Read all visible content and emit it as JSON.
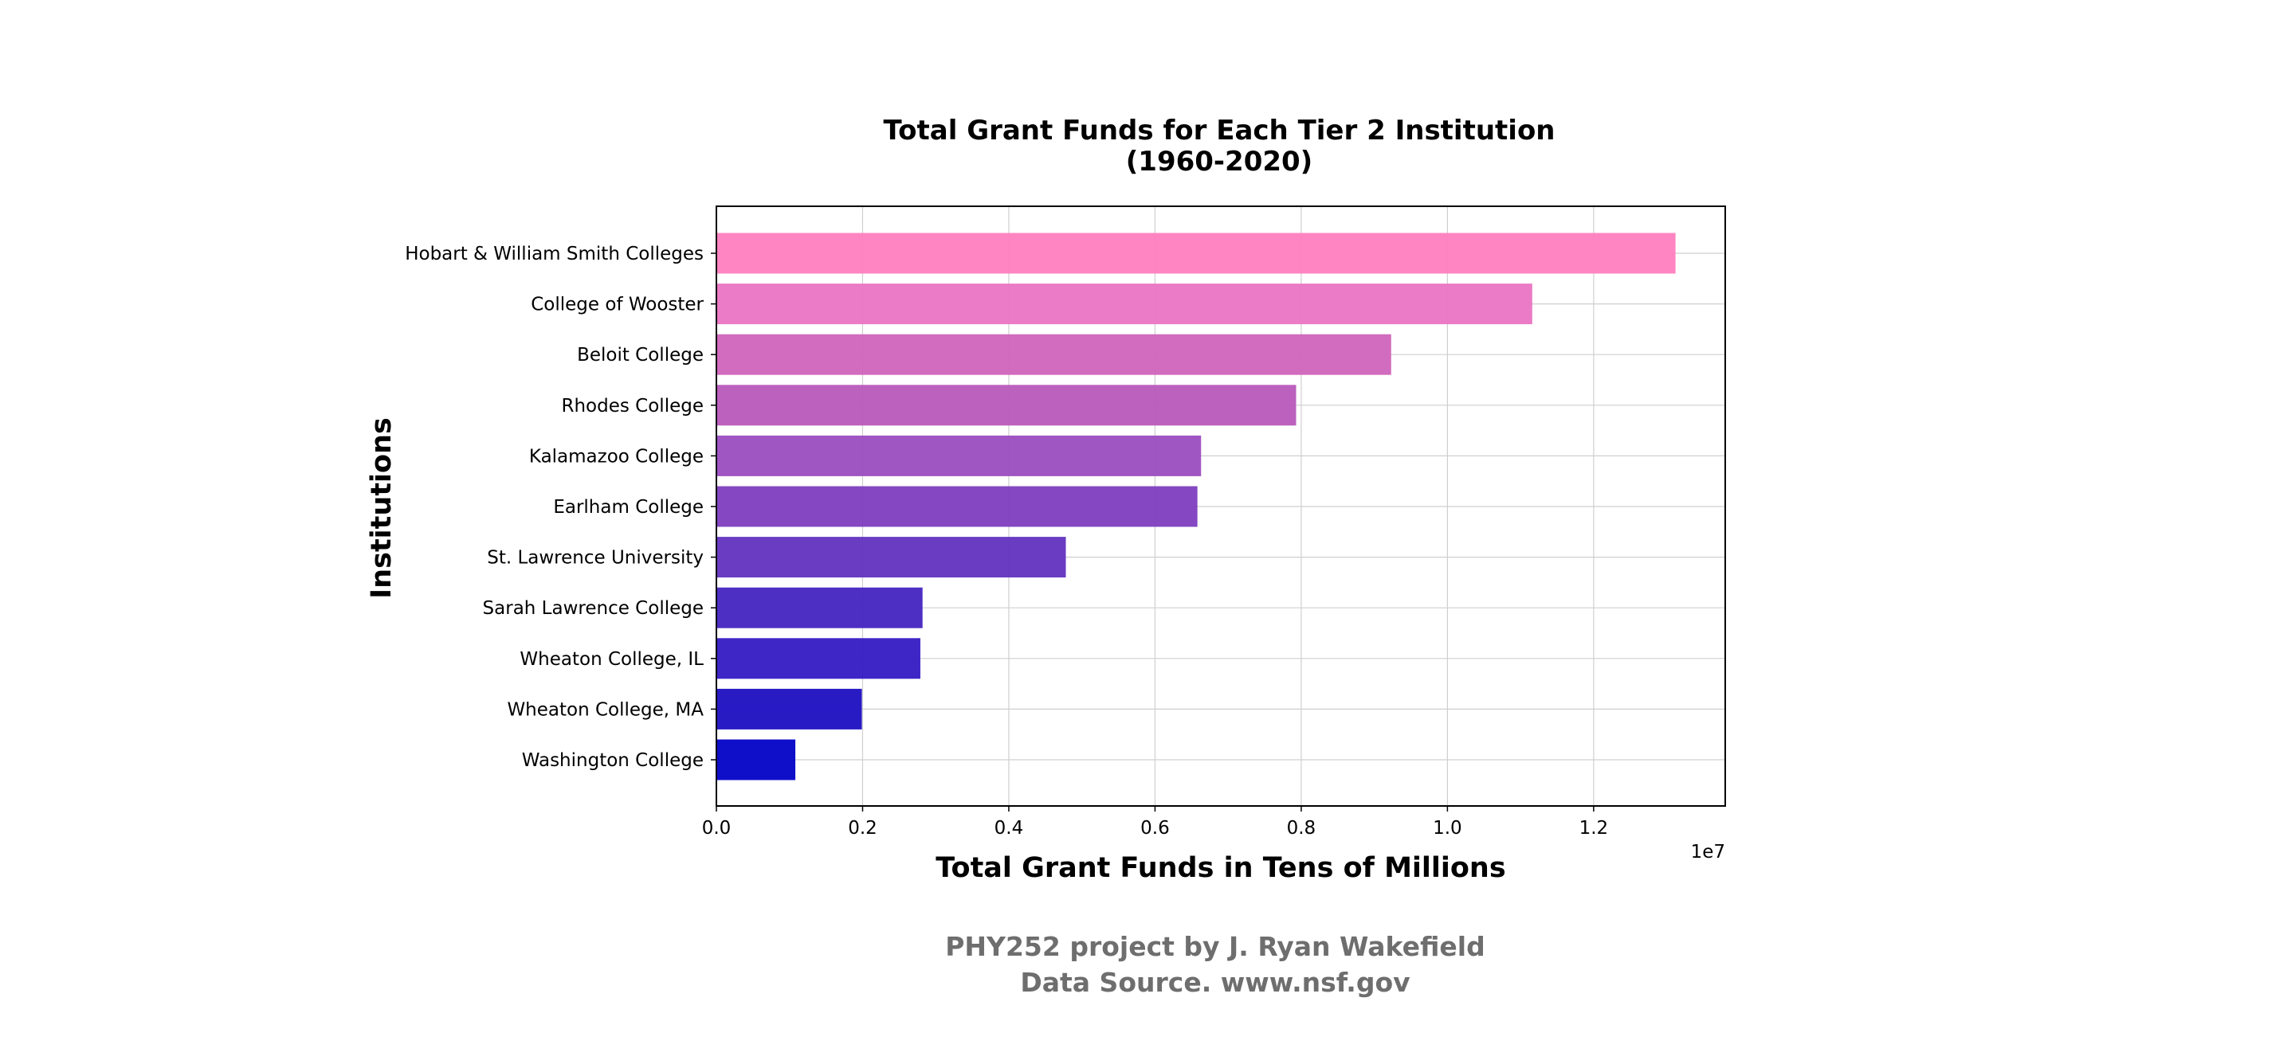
{
  "chart_data": {
    "type": "bar",
    "orientation": "horizontal",
    "title_lines": [
      "Total Grant Funds for Each Tier 2 Institution",
      "(1960-2020)"
    ],
    "xlabel": "Total Grant Funds in Tens of Millions",
    "ylabel": "Institutions",
    "x_offset_text": "1e7",
    "x_scale_exponent": 7,
    "xlim": [
      0,
      13800000
    ],
    "x_ticks": [
      0,
      2000000,
      4000000,
      6000000,
      8000000,
      10000000,
      12000000
    ],
    "x_tick_labels": [
      "0.0",
      "0.2",
      "0.4",
      "0.6",
      "0.8",
      "1.0",
      "1.2"
    ],
    "grid": true,
    "legend": "none",
    "categories": [
      "Hobart & William Smith Colleges",
      "College of Wooster",
      "Beloit College",
      "Rhodes College",
      "Kalamazoo College",
      "Earlham College",
      "St. Lawrence University",
      "Sarah Lawrence College",
      "Wheaton College, IL",
      "Wheaton College, MA",
      "Washington College"
    ],
    "values": [
      13120000,
      11160000,
      9230000,
      7930000,
      6630000,
      6580000,
      4780000,
      2820000,
      2790000,
      1990000,
      1080000
    ],
    "colors": [
      "#ff80bf",
      "#ea76c4",
      "#d066bb",
      "#b95bbb",
      "#9b4fc1",
      "#8040c0",
      "#6434c0",
      "#4626c2",
      "#361dc4",
      "#2012c2",
      "#0505c8"
    ]
  },
  "footer": {
    "line1": "PHY252 project by J. Ryan Wakefield",
    "line2": "Data Source. www.nsf.gov"
  }
}
